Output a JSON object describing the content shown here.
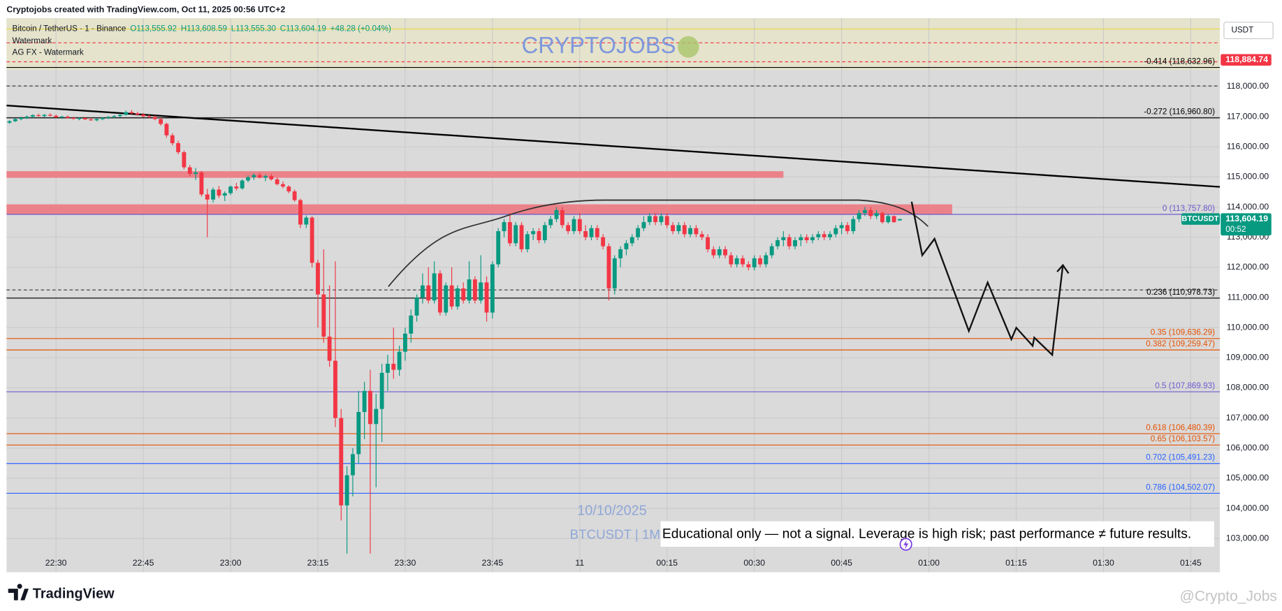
{
  "header": {
    "credit": "Cryptojobs created with TradingView.com, Oct 11, 2025 00:56 UTC+2"
  },
  "legend": {
    "symbol": "Bitcoin / TetherUS · 1 · Binance",
    "open": "O113,555.92",
    "high": "H113,608.59",
    "low": "L113,555.30",
    "close": "C113,604.19",
    "change": "+48.28 (+0.04%)",
    "indicators": [
      "Watermark",
      "AG FX - Watermark"
    ]
  },
  "watermark": {
    "brand": "CRYPTOJOBS",
    "date": "10/10/2025",
    "symbol": "BTCUSDT | 1M"
  },
  "disclaimer": "Educational only — not a signal. Leverage is high risk; past performance ≠ future results.",
  "footer": {
    "logo": "TradingView",
    "handle": "@Crypto_Jobs"
  },
  "chart_data": {
    "type": "candlestick",
    "currency": "USDT",
    "up_color": "#089981",
    "down_color": "#f23645",
    "xlim": [
      1341.5,
      1550
    ],
    "ylim": [
      101880,
      120270
    ],
    "grid": true,
    "xticks": [
      {
        "value": 1350,
        "label": "22:30"
      },
      {
        "value": 1365,
        "label": "22:45"
      },
      {
        "value": 1380,
        "label": "23:00"
      },
      {
        "value": 1395,
        "label": "23:15"
      },
      {
        "value": 1410,
        "label": "23:30"
      },
      {
        "value": 1425,
        "label": "23:45"
      },
      {
        "value": 1440,
        "label": "11"
      },
      {
        "value": 1455,
        "label": "00:15"
      },
      {
        "value": 1470,
        "label": "00:30"
      },
      {
        "value": 1485,
        "label": "00:45"
      },
      {
        "value": 1500,
        "label": "01:00"
      },
      {
        "value": 1515,
        "label": "01:15"
      },
      {
        "value": 1530,
        "label": "01:30"
      },
      {
        "value": 1545,
        "label": "01:45"
      }
    ],
    "yticks": [
      {
        "value": 103000,
        "label": "103,000.00"
      },
      {
        "value": 104000,
        "label": "104,000.00"
      },
      {
        "value": 105000,
        "label": "105,000.00"
      },
      {
        "value": 106000,
        "label": "106,000.00"
      },
      {
        "value": 107000,
        "label": "107,000.00"
      },
      {
        "value": 108000,
        "label": "108,000.00"
      },
      {
        "value": 109000,
        "label": "109,000.00"
      },
      {
        "value": 110000,
        "label": "110,000.00"
      },
      {
        "value": 111000,
        "label": "111,000.00"
      },
      {
        "value": 112000,
        "label": "112,000.00"
      },
      {
        "value": 113000,
        "label": "113,000.00"
      },
      {
        "value": 114000,
        "label": "114,000.00"
      },
      {
        "value": 115000,
        "label": "115,000.00"
      },
      {
        "value": 116000,
        "label": "116,000.00"
      },
      {
        "value": 117000,
        "label": "117,000.00"
      },
      {
        "value": 118000,
        "label": "118,000.00"
      }
    ],
    "x": [
      1342,
      1343,
      1344,
      1345,
      1346,
      1347,
      1348,
      1349,
      1350,
      1351,
      1352,
      1353,
      1354,
      1355,
      1356,
      1357,
      1358,
      1359,
      1360,
      1361,
      1362,
      1363,
      1364,
      1365,
      1366,
      1367,
      1368,
      1369,
      1370,
      1371,
      1372,
      1373,
      1374,
      1375,
      1376,
      1377,
      1378,
      1379,
      1380,
      1381,
      1382,
      1383,
      1384,
      1385,
      1386,
      1387,
      1388,
      1389,
      1390,
      1391,
      1392,
      1393,
      1394,
      1395,
      1396,
      1397,
      1398,
      1399,
      1400,
      1401,
      1402,
      1403,
      1404,
      1405,
      1406,
      1407,
      1408,
      1409,
      1410,
      1411,
      1412,
      1413,
      1414,
      1415,
      1416,
      1417,
      1418,
      1419,
      1420,
      1421,
      1422,
      1423,
      1424,
      1425,
      1426,
      1427,
      1428,
      1429,
      1430,
      1431,
      1432,
      1433,
      1434,
      1435,
      1436,
      1437,
      1438,
      1439,
      1440,
      1441,
      1442,
      1443,
      1444,
      1445,
      1446,
      1447,
      1448,
      1449,
      1450,
      1451,
      1452,
      1453,
      1454,
      1455,
      1456,
      1457,
      1458,
      1459,
      1460,
      1461,
      1462,
      1463,
      1464,
      1465,
      1466,
      1467,
      1468,
      1469,
      1470,
      1471,
      1472,
      1473,
      1474,
      1475,
      1476,
      1477,
      1478,
      1479,
      1480,
      1481,
      1482,
      1483,
      1484,
      1485,
      1486,
      1487,
      1488,
      1489,
      1490,
      1491,
      1492,
      1493,
      1494,
      1495
    ],
    "open": [
      116800,
      116850,
      116920,
      116960,
      117000,
      117050,
      117020,
      117060,
      117030,
      116980,
      117000,
      116960,
      116930,
      116950,
      116910,
      116880,
      116920,
      116960,
      116990,
      117020,
      117060,
      117150,
      117110,
      117070,
      117010,
      116990,
      116920,
      116760,
      116380,
      116120,
      115820,
      115320,
      115100,
      115150,
      114420,
      114250,
      114580,
      114380,
      114460,
      114680,
      114620,
      114880,
      114990,
      115060,
      114980,
      115030,
      114920,
      114760,
      114680,
      114520,
      114230,
      113420,
      113650,
      112150,
      111100,
      109700,
      108900,
      107000,
      104100,
      105100,
      105800,
      107200,
      107900,
      106800,
      107300,
      108500,
      108800,
      108600,
      109200,
      109800,
      110400,
      111000,
      111400,
      110900,
      111800,
      110500,
      111400,
      110700,
      111300,
      110900,
      111600,
      110900,
      111500,
      110500,
      112100,
      113200,
      113500,
      112800,
      113400,
      112600,
      113100,
      113200,
      112900,
      113400,
      113600,
      113900,
      113400,
      113200,
      113600,
      113200,
      113000,
      113300,
      113000,
      112700,
      111300,
      112300,
      112600,
      112800,
      113000,
      113300,
      113500,
      113700,
      113500,
      113700,
      113400,
      113200,
      113400,
      113100,
      113300,
      113100,
      113000,
      112600,
      112400,
      112600,
      112400,
      112100,
      112300,
      112100,
      112000,
      112300,
      112100,
      112400,
      112700,
      112900,
      113000,
      112700,
      112900,
      113000,
      112900,
      113000,
      113100,
      113000,
      113100,
      113300,
      113400,
      113200,
      113600,
      113800,
      113900,
      113700,
      113800,
      113500,
      113700,
      113555.92
    ],
    "high": [
      116880,
      116950,
      117000,
      117040,
      117080,
      117100,
      117090,
      117110,
      117070,
      117030,
      117040,
      117000,
      116980,
      116990,
      116960,
      116940,
      116980,
      117020,
      117050,
      117080,
      117200,
      117220,
      117160,
      117120,
      117060,
      117040,
      116960,
      116800,
      116450,
      116200,
      115880,
      115400,
      115300,
      115200,
      114600,
      114650,
      114700,
      114520,
      114720,
      114800,
      114920,
      115050,
      115120,
      115140,
      115080,
      115100,
      114980,
      114850,
      114720,
      114580,
      114280,
      113720,
      113700,
      112250,
      112600,
      111400,
      112200,
      107300,
      105400,
      106000,
      107900,
      108200,
      108600,
      107800,
      108800,
      109100,
      110000,
      109400,
      110000,
      110600,
      111100,
      111800,
      112000,
      112200,
      111900,
      111500,
      112000,
      111400,
      111500,
      112200,
      111700,
      112400,
      111700,
      112200,
      113300,
      113600,
      113800,
      113500,
      113500,
      113200,
      113300,
      113300,
      113500,
      113700,
      114000,
      114000,
      113500,
      113700,
      113800,
      113400,
      113400,
      113400,
      113100,
      112800,
      112400,
      112700,
      112900,
      113100,
      113400,
      113700,
      113800,
      113800,
      113800,
      113800,
      113500,
      113500,
      113500,
      113400,
      113400,
      113200,
      113100,
      112700,
      112700,
      112700,
      112500,
      112400,
      112400,
      112200,
      112400,
      112400,
      112500,
      112800,
      113000,
      113200,
      113100,
      113000,
      113100,
      113100,
      113100,
      113200,
      113200,
      113200,
      113400,
      113500,
      113500,
      113700,
      113900,
      114000,
      114000,
      113900,
      113850,
      113750,
      113720,
      113608.59
    ],
    "low": [
      116760,
      116820,
      116880,
      116920,
      116960,
      117000,
      116980,
      117010,
      116960,
      116930,
      116940,
      116900,
      116880,
      116890,
      116860,
      116850,
      116880,
      116920,
      116950,
      116980,
      117040,
      117080,
      117030,
      116980,
      116940,
      116880,
      116700,
      116300,
      116050,
      115750,
      115250,
      115020,
      114900,
      114350,
      113000,
      114150,
      114300,
      114200,
      114400,
      114550,
      114580,
      114820,
      114900,
      114950,
      114860,
      114880,
      114720,
      114620,
      114460,
      114180,
      113300,
      113300,
      112000,
      110000,
      109500,
      108700,
      106700,
      103600,
      102500,
      104400,
      105500,
      106300,
      102500,
      104700,
      106200,
      107900,
      108300,
      108400,
      108900,
      109500,
      110200,
      110800,
      110800,
      110800,
      110400,
      110400,
      110600,
      110600,
      110800,
      110800,
      110800,
      110800,
      110200,
      110300,
      112000,
      113000,
      112700,
      112700,
      112500,
      112500,
      112900,
      112800,
      112800,
      113300,
      113500,
      113300,
      113100,
      113100,
      113100,
      112900,
      112900,
      112900,
      112600,
      110900,
      111100,
      112000,
      112400,
      112700,
      112900,
      113200,
      113400,
      113400,
      113400,
      113300,
      113100,
      113100,
      113000,
      113000,
      113000,
      112900,
      112500,
      112300,
      112300,
      112300,
      112000,
      112000,
      112000,
      111900,
      111900,
      112000,
      112000,
      112300,
      112600,
      112700,
      112600,
      112600,
      112700,
      112800,
      112800,
      112900,
      112900,
      112900,
      113000,
      113100,
      113100,
      113100,
      113500,
      113700,
      113600,
      113600,
      113450,
      113450,
      113480,
      113555.3
    ],
    "close": [
      116850,
      116920,
      116960,
      117000,
      117050,
      117020,
      117060,
      117030,
      116980,
      117000,
      116960,
      116930,
      116950,
      116910,
      116880,
      116920,
      116960,
      116990,
      117020,
      117060,
      117150,
      117110,
      117070,
      117010,
      116990,
      116920,
      116760,
      116380,
      116120,
      115820,
      115320,
      115100,
      115150,
      114420,
      114250,
      114580,
      114380,
      114460,
      114680,
      114620,
      114880,
      114990,
      115060,
      114980,
      115030,
      114920,
      114760,
      114680,
      114520,
      114230,
      113420,
      113650,
      112150,
      111100,
      109700,
      108900,
      107000,
      104100,
      105100,
      105800,
      107200,
      107900,
      106800,
      107300,
      108500,
      108800,
      108600,
      109200,
      109800,
      110400,
      111000,
      111400,
      110900,
      111800,
      110500,
      111400,
      110700,
      111300,
      110900,
      111600,
      110900,
      111500,
      110500,
      112100,
      113200,
      113500,
      112800,
      113400,
      112600,
      113100,
      113200,
      112900,
      113400,
      113600,
      113900,
      113400,
      113200,
      113600,
      113200,
      113000,
      113300,
      113000,
      112700,
      111300,
      112300,
      112600,
      112800,
      113000,
      113300,
      113500,
      113700,
      113500,
      113700,
      113400,
      113200,
      113400,
      113100,
      113300,
      113100,
      113000,
      112600,
      112400,
      112600,
      112400,
      112100,
      112300,
      112100,
      112000,
      112300,
      112100,
      112400,
      112700,
      112900,
      113000,
      112700,
      112900,
      113000,
      112900,
      113000,
      113100,
      113000,
      113100,
      113300,
      113400,
      113200,
      113600,
      113800,
      113900,
      113700,
      113800,
      113500,
      113700,
      113500,
      113604.19
    ],
    "levels": [
      {
        "value": 118632.96,
        "label": "-0.414 (118,632.96)",
        "color": "#000000"
      },
      {
        "value": 116960.8,
        "label": "-0.272 (116,960.80)",
        "color": "#000000"
      },
      {
        "value": 113757.8,
        "label": "0 (113,757.80)",
        "color": "#6a5acd"
      },
      {
        "value": 110978.73,
        "label": "0.236 (110,978.73)",
        "color": "#000000"
      },
      {
        "value": 109636.29,
        "label": "0.35 (109,636.29)",
        "color": "#e65100"
      },
      {
        "value": 109259.47,
        "label": "0.382 (109,259.47)",
        "color": "#e65100"
      },
      {
        "value": 107869.93,
        "label": "0.5 (107,869.93)",
        "color": "#6a5acd"
      },
      {
        "value": 106480.39,
        "label": "0.618 (106,480.39)",
        "color": "#e65100"
      },
      {
        "value": 106103.57,
        "label": "0.65 (106,103.57)",
        "color": "#e65100"
      },
      {
        "value": 105491.23,
        "label": "0.702 (105,491.23)",
        "color": "#2962ff"
      },
      {
        "value": 104502.07,
        "label": "0.786 (104,502.07)",
        "color": "#2962ff"
      }
    ],
    "highlight_band": {
      "low": 118550,
      "high": 120270,
      "color": "#e6e4c8"
    },
    "horizontal_lines": [
      {
        "value": 119910,
        "color": "#e8d84a",
        "style": "solid"
      },
      {
        "value": 119450,
        "color": "#f23645",
        "style": "dashed"
      },
      {
        "value": 118820,
        "color": "#f23645",
        "style": "dashed"
      },
      {
        "value": 118020,
        "color": "#333333",
        "style": "dashed"
      },
      {
        "value": 111250,
        "color": "#333333",
        "style": "dashed"
      }
    ],
    "zones": [
      {
        "low": 114970,
        "high": 115190,
        "x_end": 1475,
        "color": "#ec8289"
      },
      {
        "low": 113765,
        "high": 114090,
        "x_end": 1504,
        "color": "#ec8289"
      }
    ],
    "trendline": {
      "x": [
        1341.5,
        1550
      ],
      "y": [
        117370,
        114670
      ],
      "color": "#000000"
    },
    "alert_price": {
      "value": 118884.74,
      "label": "118,884.74",
      "color": "#f23645"
    },
    "current_price": {
      "value": 113604.19,
      "label": "113,604.19",
      "symbol": "BTCUSDT",
      "countdown": "00:52",
      "color": "#089981"
    }
  }
}
